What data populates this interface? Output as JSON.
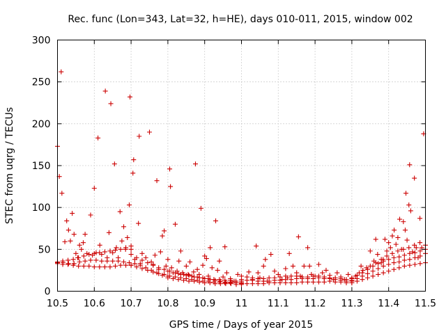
{
  "chart_data": {
    "type": "scatter",
    "title": "Rec. func (Lon=343, Lat=32, h=HE), days 010-011, 2015, window 002",
    "xlabel": "GPS time / Days of year 2015",
    "ylabel": "STEC from uqrg / TECUs",
    "xlim": [
      10.5,
      11.5
    ],
    "ylim": [
      0,
      300
    ],
    "xticks": [
      10.5,
      10.6,
      10.7,
      10.8,
      10.9,
      11,
      11.1,
      11.2,
      11.3,
      11.4,
      11.5
    ],
    "xtick_labels": [
      "10.5",
      "10.6",
      "10.7",
      "10.8",
      "10.9",
      "11",
      "11.1",
      "11.2",
      "11.3",
      "11.4",
      "11.5"
    ],
    "yticks": [
      0,
      50,
      100,
      150,
      200,
      250,
      300
    ],
    "ytick_labels": [
      "0",
      "50",
      "100",
      "150",
      "200",
      "250",
      "300"
    ],
    "grid": true,
    "marker": "+",
    "color": "#cc0000",
    "series": [
      {
        "name": "STEC",
        "points": [
          [
            10.5,
            173
          ],
          [
            10.505,
            137
          ],
          [
            10.51,
            262
          ],
          [
            10.512,
            117
          ],
          [
            10.52,
            59
          ],
          [
            10.525,
            84
          ],
          [
            10.53,
            73
          ],
          [
            10.535,
            60
          ],
          [
            10.54,
            93
          ],
          [
            10.545,
            68
          ],
          [
            10.55,
            45
          ],
          [
            10.555,
            40
          ],
          [
            10.56,
            55
          ],
          [
            10.565,
            50
          ],
          [
            10.57,
            58
          ],
          [
            10.575,
            68
          ],
          [
            10.58,
            45
          ],
          [
            10.59,
            91
          ],
          [
            10.595,
            43
          ],
          [
            10.6,
            123
          ],
          [
            10.605,
            46
          ],
          [
            10.61,
            183
          ],
          [
            10.615,
            55
          ],
          [
            10.62,
            44
          ],
          [
            10.63,
            239
          ],
          [
            10.635,
            40
          ],
          [
            10.64,
            70
          ],
          [
            10.645,
            224
          ],
          [
            10.65,
            46
          ],
          [
            10.655,
            152
          ],
          [
            10.66,
            52
          ],
          [
            10.665,
            40
          ],
          [
            10.67,
            95
          ],
          [
            10.675,
            60
          ],
          [
            10.68,
            77
          ],
          [
            10.685,
            50
          ],
          [
            10.69,
            64
          ],
          [
            10.695,
            103
          ],
          [
            10.697,
            232
          ],
          [
            10.7,
            50
          ],
          [
            10.705,
            141
          ],
          [
            10.707,
            157
          ],
          [
            10.71,
            38
          ],
          [
            10.72,
            81
          ],
          [
            10.722,
            185
          ],
          [
            10.725,
            33
          ],
          [
            10.73,
            45
          ],
          [
            10.74,
            40
          ],
          [
            10.75,
            190
          ],
          [
            10.755,
            35
          ],
          [
            10.76,
            32
          ],
          [
            10.765,
            43
          ],
          [
            10.77,
            132
          ],
          [
            10.775,
            26
          ],
          [
            10.78,
            47
          ],
          [
            10.785,
            66
          ],
          [
            10.79,
            72
          ],
          [
            10.795,
            30
          ],
          [
            10.8,
            38
          ],
          [
            10.805,
            146
          ],
          [
            10.807,
            125
          ],
          [
            10.81,
            28
          ],
          [
            10.82,
            80
          ],
          [
            10.825,
            24
          ],
          [
            10.83,
            36
          ],
          [
            10.835,
            48
          ],
          [
            10.84,
            22
          ],
          [
            10.85,
            30
          ],
          [
            10.855,
            20
          ],
          [
            10.86,
            35
          ],
          [
            10.87,
            23
          ],
          [
            10.875,
            152
          ],
          [
            10.88,
            26
          ],
          [
            10.885,
            20
          ],
          [
            10.89,
            99
          ],
          [
            10.895,
            31
          ],
          [
            10.9,
            42
          ],
          [
            10.905,
            39
          ],
          [
            10.91,
            18
          ],
          [
            10.915,
            52
          ],
          [
            10.92,
            28
          ],
          [
            10.93,
            84
          ],
          [
            10.935,
            25
          ],
          [
            10.94,
            36
          ],
          [
            10.95,
            17
          ],
          [
            10.955,
            53
          ],
          [
            10.96,
            22
          ],
          [
            10.97,
            15
          ],
          [
            10.98,
            12
          ],
          [
            10.99,
            20
          ],
          [
            11.02,
            23
          ],
          [
            11.03,
            14
          ],
          [
            11.04,
            54
          ],
          [
            11.045,
            22
          ],
          [
            11.05,
            16
          ],
          [
            11.06,
            30
          ],
          [
            11.065,
            38
          ],
          [
            11.07,
            12
          ],
          [
            11.08,
            44
          ],
          [
            11.09,
            24
          ],
          [
            11.1,
            20
          ],
          [
            11.11,
            14
          ],
          [
            11.12,
            27
          ],
          [
            11.125,
            16
          ],
          [
            11.13,
            45
          ],
          [
            11.14,
            30
          ],
          [
            11.15,
            22
          ],
          [
            11.155,
            65
          ],
          [
            11.16,
            18
          ],
          [
            11.17,
            30
          ],
          [
            11.18,
            52
          ],
          [
            11.185,
            30
          ],
          [
            11.19,
            20
          ],
          [
            11.2,
            18
          ],
          [
            11.21,
            32
          ],
          [
            11.22,
            22
          ],
          [
            11.23,
            25
          ],
          [
            11.24,
            19
          ],
          [
            11.25,
            14
          ],
          [
            11.26,
            22
          ],
          [
            11.27,
            17
          ],
          [
            11.28,
            14
          ],
          [
            11.29,
            20
          ],
          [
            11.3,
            15
          ],
          [
            11.31,
            18
          ],
          [
            11.32,
            22
          ],
          [
            11.325,
            30
          ],
          [
            11.33,
            25
          ],
          [
            11.34,
            28
          ],
          [
            11.35,
            48
          ],
          [
            11.36,
            36
          ],
          [
            11.365,
            62
          ],
          [
            11.37,
            44
          ],
          [
            11.38,
            34
          ],
          [
            11.385,
            38
          ],
          [
            11.39,
            62
          ],
          [
            11.395,
            48
          ],
          [
            11.4,
            58
          ],
          [
            11.405,
            52
          ],
          [
            11.41,
            66
          ],
          [
            11.415,
            73
          ],
          [
            11.42,
            56
          ],
          [
            11.425,
            64
          ],
          [
            11.43,
            86
          ],
          [
            11.435,
            50
          ],
          [
            11.44,
            83
          ],
          [
            11.445,
            73
          ],
          [
            11.447,
            117
          ],
          [
            11.45,
            61
          ],
          [
            11.455,
            103
          ],
          [
            11.457,
            151
          ],
          [
            11.46,
            96
          ],
          [
            11.465,
            47
          ],
          [
            11.47,
            135
          ],
          [
            11.475,
            52
          ],
          [
            11.48,
            40
          ],
          [
            11.485,
            87
          ],
          [
            11.49,
            52
          ],
          [
            11.495,
            188
          ]
        ],
        "tracks": [
          {
            "x0": 10.5,
            "x1": 10.7,
            "values": [
              33,
              32,
              32,
              31,
              30,
              30,
              30,
              29,
              29,
              29,
              29,
              30,
              31,
              31,
              31
            ]
          },
          {
            "x0": 10.5,
            "x1": 10.8,
            "values": [
              34,
              34,
              33,
              33,
              35,
              36,
              37,
              37,
              36,
              36,
              36,
              36,
              35,
              34,
              33,
              31,
              28,
              25,
              22,
              19,
              18
            ]
          },
          {
            "x0": 10.5,
            "x1": 10.7,
            "values": [
              35,
              36,
              37,
              38,
              40,
              42,
              44,
              45,
              46,
              47,
              48,
              49,
              50,
              52,
              54
            ]
          },
          {
            "x0": 10.7,
            "x1": 11.0,
            "values": [
              31,
              29,
              27,
              25,
              23,
              21,
              20,
              18,
              17,
              16,
              15,
              14,
              13,
              12,
              12,
              11,
              11,
              10,
              10,
              10,
              10
            ]
          },
          {
            "x0": 10.7,
            "x1": 11.0,
            "values": [
              44,
              40,
              37,
              34,
              31,
              28,
              26,
              24,
              22,
              20,
              19,
              18,
              17,
              16,
              15,
              14,
              14,
              13,
              13,
              12,
              12
            ]
          },
          {
            "x0": 10.8,
            "x1": 11.0,
            "values": [
              24,
              22,
              21,
              20,
              19,
              17,
              16,
              15,
              14,
              13,
              12,
              11,
              11,
              10,
              9
            ]
          },
          {
            "x0": 10.8,
            "x1": 11.0,
            "values": [
              16,
              15,
              14,
              13,
              12,
              12,
              11,
              10,
              10,
              9,
              9,
              9,
              9,
              8,
              8
            ]
          },
          {
            "x0": 11.0,
            "x1": 11.3,
            "values": [
              10,
              9,
              9,
              9,
              9,
              10,
              10,
              10,
              10,
              10,
              10,
              11,
              11,
              11,
              11,
              11,
              12,
              11,
              11,
              10,
              10
            ]
          },
          {
            "x0": 11.0,
            "x1": 11.3,
            "values": [
              14,
              13,
              13,
              12,
              12,
              12,
              13,
              13,
              14,
              14,
              15,
              15,
              15,
              15,
              16,
              15,
              15,
              14,
              13,
              12,
              12
            ]
          },
          {
            "x0": 11.0,
            "x1": 11.3,
            "values": [
              18,
              17,
              16,
              15,
              15,
              16,
              16,
              17,
              18,
              18,
              18,
              17,
              17,
              18,
              18,
              17,
              16,
              16,
              15,
              14,
              15
            ]
          },
          {
            "x0": 11.3,
            "x1": 11.5,
            "values": [
              10,
              12,
              14,
              16,
              18,
              20,
              22,
              24,
              26,
              28,
              30,
              31,
              32,
              33,
              34
            ]
          },
          {
            "x0": 11.3,
            "x1": 11.5,
            "values": [
              13,
              15,
              18,
              21,
              24,
              27,
              30,
              32,
              34,
              35,
              37,
              38,
              40,
              42,
              45
            ]
          },
          {
            "x0": 11.3,
            "x1": 11.5,
            "values": [
              16,
              19,
              22,
              26,
              30,
              33,
              36,
              38,
              40,
              41,
              43,
              45,
              46,
              48,
              50
            ]
          },
          {
            "x0": 11.35,
            "x1": 11.5,
            "values": [
              30,
              34,
              38,
              42,
              45,
              48,
              50,
              52,
              55,
              58,
              55
            ]
          }
        ]
      }
    ]
  }
}
